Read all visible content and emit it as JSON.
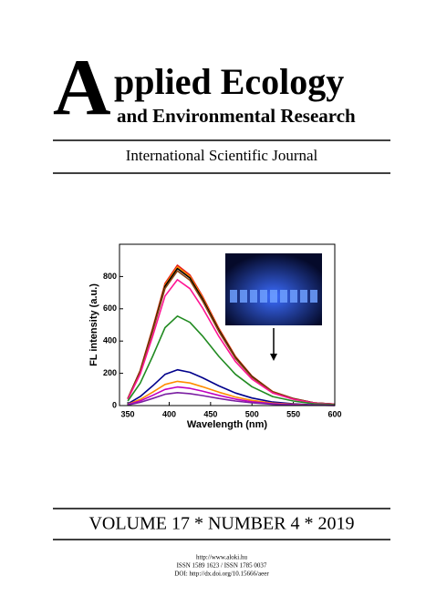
{
  "header": {
    "title_initial": "A",
    "title_rest": "pplied Ecology",
    "subtitle": "and Environmental Research",
    "tagline": "International Scientific Journal"
  },
  "chart_data": {
    "type": "line",
    "x_label": "Wavelength (nm)",
    "y_label": "FL intensity (a.u.)",
    "x": [
      350,
      365,
      380,
      395,
      410,
      425,
      440,
      460,
      480,
      500,
      525,
      550,
      575,
      600
    ],
    "xlim": [
      340,
      600
    ],
    "xticks": [
      350,
      400,
      450,
      500,
      550,
      600
    ],
    "ylim": [
      0,
      1000
    ],
    "yticks": [
      0,
      200,
      400,
      600,
      800
    ],
    "series": [
      {
        "color": "#e41a1c",
        "values": [
          44,
          218,
          479,
          757,
          870,
          809,
          679,
          479,
          305,
          183,
          87,
          44,
          17,
          9
        ]
      },
      {
        "color": "#ff8c00",
        "values": [
          43,
          215,
          473,
          748,
          860,
          800,
          671,
          473,
          301,
          181,
          86,
          43,
          17,
          9
        ]
      },
      {
        "color": "#000000",
        "values": [
          43,
          213,
          468,
          740,
          850,
          791,
          663,
          468,
          298,
          179,
          85,
          43,
          17,
          9
        ]
      },
      {
        "color": "#8b4513",
        "values": [
          42,
          209,
          459,
          726,
          835,
          777,
          651,
          459,
          292,
          175,
          84,
          42,
          17,
          8
        ]
      },
      {
        "color": "#ff1493",
        "values": [
          39,
          195,
          429,
          679,
          780,
          725,
          608,
          429,
          273,
          164,
          78,
          39,
          16,
          8
        ]
      },
      {
        "color": "#228b22",
        "values": [
          28,
          139,
          305,
          483,
          555,
          516,
          433,
          305,
          194,
          117,
          56,
          28,
          11,
          6
        ]
      },
      {
        "color": "#00008b",
        "values": [
          11,
          56,
          122,
          193,
          222,
          206,
          173,
          122,
          78,
          47,
          22,
          11,
          4,
          2
        ]
      },
      {
        "color": "#ff8c00",
        "values": [
          8,
          38,
          83,
          131,
          150,
          140,
          117,
          83,
          53,
          32,
          15,
          8,
          3,
          2
        ]
      },
      {
        "color": "#c000c0",
        "values": [
          6,
          29,
          63,
          100,
          115,
          107,
          90,
          63,
          40,
          24,
          12,
          6,
          2,
          1
        ]
      },
      {
        "color": "#7a1fa2",
        "values": [
          4,
          20,
          44,
          70,
          80,
          74,
          62,
          44,
          28,
          17,
          8,
          4,
          2,
          1
        ]
      }
    ]
  },
  "footer": {
    "volume": "VOLUME 17 * NUMBER 4 * 2019",
    "url": "http://www.aloki.hu",
    "issn": "ISSN 1589 1623 / ISSN 1785 0037",
    "doi": "DOI: http://dx.doi.org/10.15666/aeer"
  }
}
